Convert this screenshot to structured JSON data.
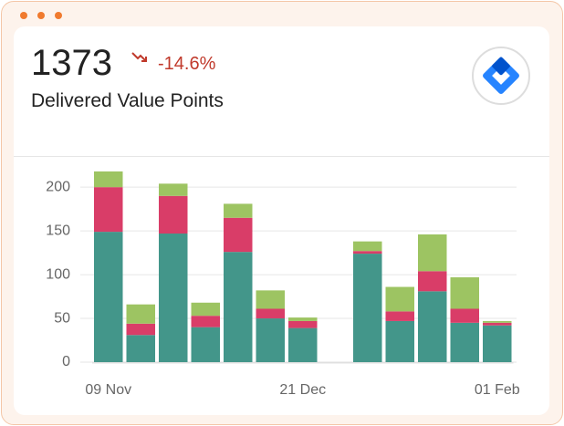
{
  "header": {
    "value": "1373",
    "change": "-14.6%",
    "label": "Delivered Value Points"
  },
  "chart_data": {
    "type": "stacked-bar",
    "categories": [
      "09 Nov",
      null,
      null,
      null,
      null,
      null,
      "21 Dec",
      null,
      null,
      null,
      null,
      null,
      "01 Feb"
    ],
    "series": [
      {
        "color": "#43968a",
        "values": [
          149,
          31,
          147,
          40,
          126,
          50,
          39,
          0,
          124,
          47,
          81,
          45,
          42
        ]
      },
      {
        "color": "#d93d68",
        "values": [
          51,
          13,
          43,
          13,
          39,
          11,
          8,
          0,
          3,
          11,
          23,
          16,
          3
        ]
      },
      {
        "color": "#9dc462",
        "values": [
          18,
          22,
          14,
          15,
          16,
          21,
          4,
          0,
          11,
          28,
          42,
          36,
          2
        ]
      }
    ],
    "ylim": [
      0,
      220
    ],
    "yticks": [
      0,
      50,
      100,
      150,
      200
    ],
    "grid": true
  }
}
